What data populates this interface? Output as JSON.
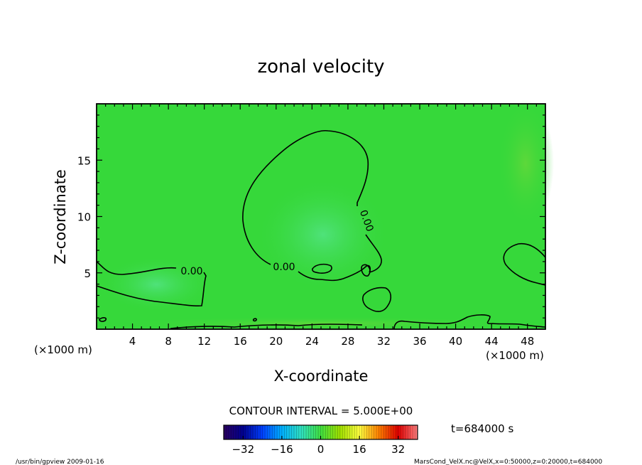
{
  "chart_data": {
    "type": "contour",
    "title": "zonal velocity",
    "xlabel": "X-coordinate",
    "ylabel": "Z-coordinate",
    "x_unit_left": "(×1000 m)",
    "x_unit_right": "(×1000 m)",
    "xlim": [
      0,
      50
    ],
    "ylim": [
      0,
      20
    ],
    "x_ticks": [
      4,
      8,
      12,
      16,
      20,
      24,
      28,
      32,
      36,
      40,
      44,
      48
    ],
    "y_ticks": [
      5,
      10,
      15
    ],
    "contour_labels": [
      "0.00",
      "0.00",
      "0.00"
    ],
    "contour_interval_text": "CONTOUR INTERVAL = 5.000E+00",
    "time_text": "t=684000 s",
    "colorbar": {
      "range": [
        -40,
        40
      ],
      "ticks": [
        -32,
        -16,
        0,
        16,
        32
      ],
      "colors": [
        "#2a0060",
        "#000090",
        "#0040ff",
        "#00b0ff",
        "#30e0c0",
        "#40e040",
        "#a0e000",
        "#ffff40",
        "#ff8000",
        "#e00000",
        "#ff8080"
      ]
    },
    "field_color": "#36d83a",
    "footer_left": "/usr/bin/gpview   2009-01-16",
    "footer_right": "MarsCond_VelX.nc@VelX,x=0:50000,z=0:20000,t=684000"
  }
}
